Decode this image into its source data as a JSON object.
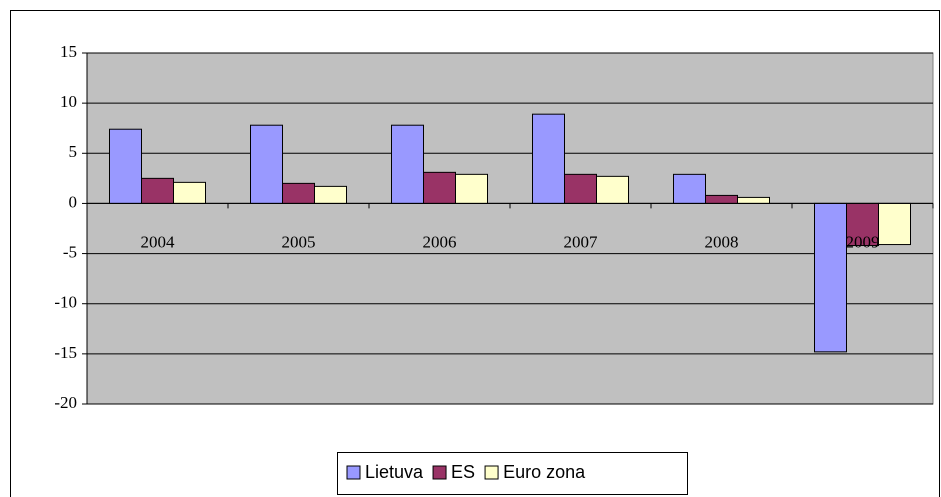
{
  "chart_data": {
    "type": "bar",
    "categories": [
      "2004",
      "2005",
      "2006",
      "2007",
      "2008",
      "2009"
    ],
    "series": [
      {
        "name": "Lietuva",
        "color": "#9999ff",
        "values": [
          7.4,
          7.8,
          7.8,
          8.9,
          2.9,
          -14.8
        ]
      },
      {
        "name": "ES",
        "color": "#993366",
        "values": [
          2.5,
          2.0,
          3.1,
          2.9,
          0.8,
          -4.2
        ]
      },
      {
        "name": "Euro zona",
        "color": "#ffffcc",
        "values": [
          2.1,
          1.7,
          2.9,
          2.7,
          0.6,
          -4.1
        ]
      }
    ],
    "ylim": [
      -20,
      15
    ],
    "yticks": [
      -20,
      -15,
      -10,
      -5,
      0,
      5,
      10,
      15
    ],
    "grid": true,
    "legend": "bottom"
  }
}
